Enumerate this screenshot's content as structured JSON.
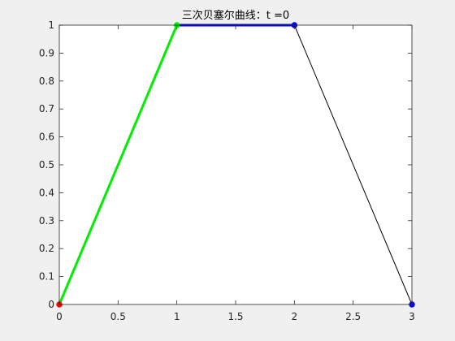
{
  "window": {
    "background": "#f0f0f0"
  },
  "chart_data": {
    "type": "line",
    "title": "三次贝塞尔曲线：t =0",
    "xlabel": "",
    "ylabel": "",
    "xlim": [
      0,
      3
    ],
    "ylim": [
      0,
      1
    ],
    "xticks": [
      0,
      0.5,
      1,
      1.5,
      2,
      2.5,
      3
    ],
    "xtick_labels": [
      "0",
      "0.5",
      "1",
      "1.5",
      "2",
      "2.5",
      "3"
    ],
    "yticks": [
      0,
      0.1,
      0.2,
      0.3,
      0.4,
      0.5,
      0.6,
      0.7,
      0.8,
      0.9,
      1
    ],
    "ytick_labels": [
      "0",
      "0.1",
      "0.2",
      "0.3",
      "0.4",
      "0.5",
      "0.6",
      "0.7",
      "0.8",
      "0.9",
      "1"
    ],
    "grid": false,
    "series": [
      {
        "x": [
          0,
          1,
          2,
          3
        ],
        "y": [
          0,
          1,
          1,
          0
        ],
        "color": "#000000",
        "width": 1,
        "style": "line"
      },
      {
        "x": [
          0,
          1
        ],
        "y": [
          0,
          1
        ],
        "color": "#00ee00",
        "width": 3,
        "style": "line"
      },
      {
        "x": [
          1,
          2
        ],
        "y": [
          1,
          1
        ],
        "color": "#0000ff",
        "width": 3,
        "style": "line"
      },
      {
        "x": [
          0
        ],
        "y": [
          0
        ],
        "color": "#ff0000",
        "style": "marker"
      },
      {
        "x": [
          1
        ],
        "y": [
          1
        ],
        "color": "#00ee00",
        "style": "marker"
      },
      {
        "x": [
          2,
          3
        ],
        "y": [
          1,
          0
        ],
        "color": "#0000ff",
        "style": "marker"
      }
    ]
  }
}
